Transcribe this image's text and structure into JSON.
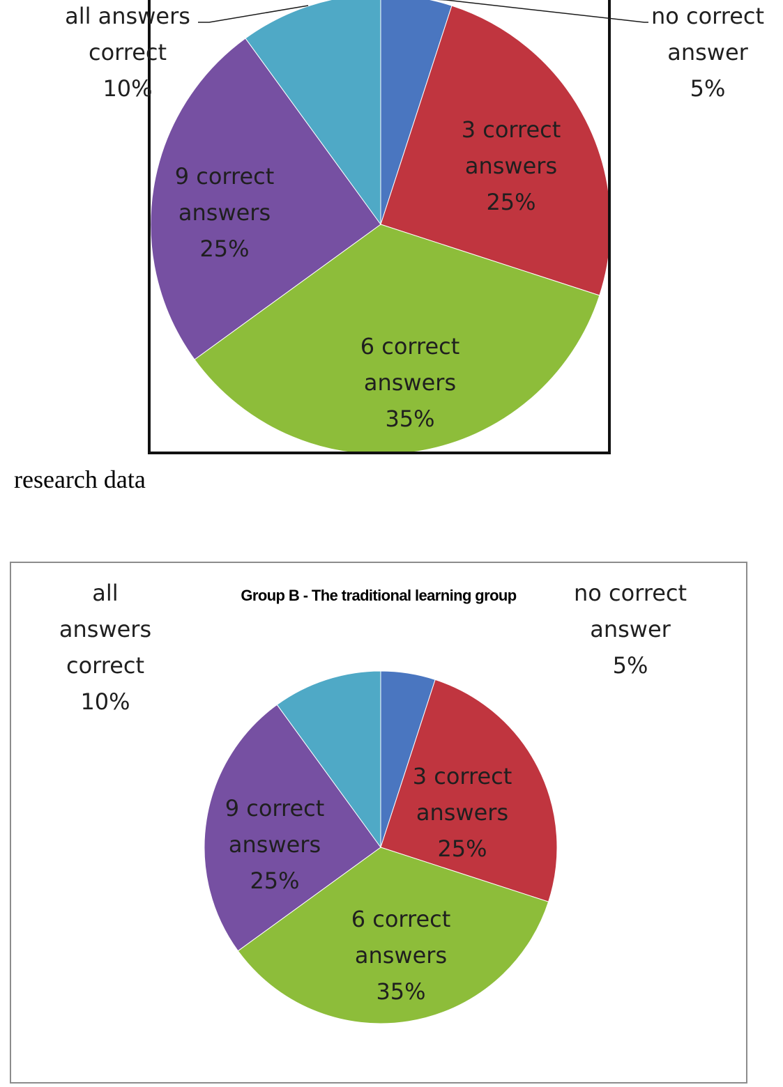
{
  "caption": "research data",
  "chart_data": [
    {
      "type": "pie",
      "title": "",
      "slices": [
        {
          "label_lines": [
            "no correct",
            "answer",
            "5%"
          ],
          "value": 5,
          "color": "#4a76c0"
        },
        {
          "label_lines": [
            "3 correct",
            "answers",
            "25%"
          ],
          "value": 25,
          "color": "#c0353f"
        },
        {
          "label_lines": [
            "6 correct",
            "answers",
            "35%"
          ],
          "value": 35,
          "color": "#8dbd3a"
        },
        {
          "label_lines": [
            "9 correct",
            "answers",
            "25%"
          ],
          "value": 25,
          "color": "#7650a2"
        },
        {
          "label_lines": [
            "all answers",
            "correct",
            "10%"
          ],
          "value": 10,
          "color": "#4fa9c6"
        }
      ]
    },
    {
      "type": "pie",
      "title": "Group B - The traditional learning group",
      "slices": [
        {
          "label_lines": [
            "no correct",
            "answer",
            "5%"
          ],
          "value": 5,
          "color": "#4a76c0"
        },
        {
          "label_lines": [
            "3 correct",
            "answers",
            "25%"
          ],
          "value": 25,
          "color": "#c0353f"
        },
        {
          "label_lines": [
            "6 correct",
            "answers",
            "35%"
          ],
          "value": 35,
          "color": "#8dbd3a"
        },
        {
          "label_lines": [
            "9 correct",
            "answers",
            "25%"
          ],
          "value": 25,
          "color": "#7650a2"
        },
        {
          "label_lines": [
            "all",
            "answers",
            "correct",
            "10%"
          ],
          "value": 10,
          "color": "#4fa9c6"
        }
      ]
    }
  ]
}
